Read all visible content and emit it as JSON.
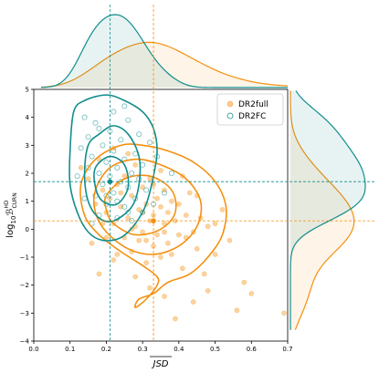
{
  "chart_data": {
    "type": "scatter",
    "xlabel": "JSD",
    "xlabel_overline": true,
    "ylabel_text": "log",
    "ylabel_sub": "10",
    "ylabel_b": "ℬ",
    "ylabel_sup": "HD",
    "ylabel_sub2": "CURN",
    "xlim": [
      0.0,
      0.7
    ],
    "ylim": [
      -4,
      5
    ],
    "xticks": [
      "0.0",
      "0.1",
      "0.2",
      "0.3",
      "0.4",
      "0.5",
      "0.6",
      "0.7"
    ],
    "yticks": [
      "−4",
      "−3",
      "−2",
      "−1",
      "0",
      "1",
      "2",
      "3",
      "4",
      "5"
    ],
    "legend_position": "top-right",
    "colors": {
      "dr2full": "#f5900f",
      "dr2fc": "#128d8d"
    },
    "series": [
      {
        "name": "DR2full",
        "marker": "filled-circle",
        "color": "#f5900f",
        "median": [
          0.33,
          0.3
        ],
        "points": [
          [
            0.13,
            2.2
          ],
          [
            0.15,
            1.8
          ],
          [
            0.17,
            0.9
          ],
          [
            0.18,
            2.5
          ],
          [
            0.19,
            1.4
          ],
          [
            0.2,
            0.6
          ],
          [
            0.21,
            1.1
          ],
          [
            0.22,
            2.9
          ],
          [
            0.22,
            0.2
          ],
          [
            0.23,
            1.6
          ],
          [
            0.24,
            0.8
          ],
          [
            0.25,
            -0.3
          ],
          [
            0.25,
            1.9
          ],
          [
            0.26,
            0.4
          ],
          [
            0.27,
            1.2
          ],
          [
            0.27,
            -0.8
          ],
          [
            0.28,
            0.1
          ],
          [
            0.28,
            2.3
          ],
          [
            0.29,
            0.7
          ],
          [
            0.29,
            -0.4
          ],
          [
            0.3,
            1.5
          ],
          [
            0.3,
            -0.1
          ],
          [
            0.31,
            0.9
          ],
          [
            0.31,
            -1.2
          ],
          [
            0.32,
            0.3
          ],
          [
            0.32,
            1.8
          ],
          [
            0.33,
            -0.6
          ],
          [
            0.33,
            0.5
          ],
          [
            0.34,
            1.1
          ],
          [
            0.34,
            -0.2
          ],
          [
            0.35,
            0.8
          ],
          [
            0.35,
            -1.0
          ],
          [
            0.36,
            0.2
          ],
          [
            0.36,
            1.4
          ],
          [
            0.37,
            -0.5
          ],
          [
            0.37,
            0.6
          ],
          [
            0.38,
            1.0
          ],
          [
            0.38,
            -0.9
          ],
          [
            0.39,
            0.3
          ],
          [
            0.4,
            -0.2
          ],
          [
            0.4,
            0.9
          ],
          [
            0.41,
            -1.4
          ],
          [
            0.42,
            0.5
          ],
          [
            0.43,
            1.3
          ],
          [
            0.44,
            -0.1
          ],
          [
            0.45,
            -0.7
          ],
          [
            0.46,
            0.4
          ],
          [
            0.47,
            -1.6
          ],
          [
            0.48,
            0.1
          ],
          [
            0.5,
            -0.9
          ],
          [
            0.52,
            0.7
          ],
          [
            0.54,
            -0.4
          ],
          [
            0.56,
            -2.9
          ],
          [
            0.58,
            -1.9
          ],
          [
            0.6,
            -2.3
          ],
          [
            0.48,
            -2.2
          ],
          [
            0.36,
            -2.4
          ],
          [
            0.28,
            -1.7
          ],
          [
            0.18,
            -1.6
          ],
          [
            0.23,
            -0.9
          ],
          [
            0.39,
            -3.2
          ],
          [
            0.44,
            -2.6
          ],
          [
            0.26,
            2.7
          ],
          [
            0.35,
            2.1
          ],
          [
            0.41,
            1.9
          ],
          [
            0.45,
            1.2
          ],
          [
            0.5,
            0.2
          ],
          [
            0.24,
            1.3
          ],
          [
            0.3,
            0.6
          ],
          [
            0.33,
            1.6
          ],
          [
            0.2,
            -0.3
          ],
          [
            0.22,
            -1.1
          ],
          [
            0.27,
            0.0
          ],
          [
            0.31,
            -0.4
          ],
          [
            0.36,
            -0.1
          ],
          [
            0.42,
            -0.3
          ],
          [
            0.19,
            0.2
          ],
          [
            0.16,
            -0.5
          ],
          [
            0.69,
            -3.0
          ],
          [
            0.32,
            -2.1
          ]
        ]
      },
      {
        "name": "DR2FC",
        "marker": "open-circle",
        "color": "#128d8d",
        "median": [
          0.21,
          1.7
        ],
        "points": [
          [
            0.14,
            4.0
          ],
          [
            0.15,
            3.3
          ],
          [
            0.16,
            2.6
          ],
          [
            0.17,
            3.8
          ],
          [
            0.17,
            1.2
          ],
          [
            0.18,
            2.0
          ],
          [
            0.18,
            0.5
          ],
          [
            0.19,
            3.0
          ],
          [
            0.19,
            1.6
          ],
          [
            0.2,
            2.4
          ],
          [
            0.2,
            0.9
          ],
          [
            0.21,
            3.5
          ],
          [
            0.21,
            1.9
          ],
          [
            0.22,
            2.8
          ],
          [
            0.22,
            1.3
          ],
          [
            0.23,
            0.4
          ],
          [
            0.23,
            2.2
          ],
          [
            0.24,
            1.7
          ],
          [
            0.24,
            3.2
          ],
          [
            0.25,
            0.8
          ],
          [
            0.25,
            2.5
          ],
          [
            0.26,
            1.5
          ],
          [
            0.26,
            3.9
          ],
          [
            0.27,
            2.0
          ],
          [
            0.27,
            0.3
          ],
          [
            0.28,
            1.1
          ],
          [
            0.28,
            2.7
          ],
          [
            0.29,
            1.8
          ],
          [
            0.3,
            0.6
          ],
          [
            0.3,
            2.3
          ],
          [
            0.31,
            1.4
          ],
          [
            0.32,
            3.1
          ],
          [
            0.33,
            0.9
          ],
          [
            0.13,
            2.9
          ],
          [
            0.12,
            1.9
          ],
          [
            0.14,
            1.1
          ],
          [
            0.16,
            0.2
          ],
          [
            0.22,
            4.2
          ],
          [
            0.25,
            4.4
          ],
          [
            0.18,
            3.6
          ],
          [
            0.2,
            1.2
          ],
          [
            0.23,
            1.0
          ],
          [
            0.26,
            0.6
          ],
          [
            0.15,
            2.2
          ],
          [
            0.29,
            3.4
          ],
          [
            0.34,
            2.6
          ],
          [
            0.36,
            1.3
          ],
          [
            0.38,
            2.0
          ]
        ]
      }
    ],
    "contours": {
      "dr2fc": [
        [
          [
            0.11,
            4.2
          ],
          [
            0.14,
            4.6
          ],
          [
            0.2,
            4.8
          ],
          [
            0.25,
            4.6
          ],
          [
            0.3,
            4.2
          ],
          [
            0.33,
            3.6
          ],
          [
            0.34,
            2.8
          ],
          [
            0.33,
            1.9
          ],
          [
            0.31,
            0.9
          ],
          [
            0.28,
            0.2
          ],
          [
            0.24,
            -0.3
          ],
          [
            0.19,
            -0.4
          ],
          [
            0.15,
            -0.1
          ],
          [
            0.12,
            0.6
          ],
          [
            0.1,
            1.6
          ],
          [
            0.1,
            2.8
          ],
          [
            0.11,
            4.2
          ]
        ],
        [
          [
            0.15,
            3.0
          ],
          [
            0.18,
            3.4
          ],
          [
            0.22,
            3.7
          ],
          [
            0.26,
            3.4
          ],
          [
            0.29,
            2.6
          ],
          [
            0.29,
            1.6
          ],
          [
            0.27,
            0.8
          ],
          [
            0.22,
            0.3
          ],
          [
            0.18,
            0.4
          ],
          [
            0.15,
            1.0
          ],
          [
            0.14,
            2.0
          ],
          [
            0.15,
            3.0
          ]
        ],
        [
          [
            0.17,
            2.2
          ],
          [
            0.21,
            2.6
          ],
          [
            0.25,
            2.3
          ],
          [
            0.26,
            1.5
          ],
          [
            0.23,
            0.9
          ],
          [
            0.19,
            1.0
          ],
          [
            0.17,
            1.5
          ],
          [
            0.17,
            2.2
          ]
        ]
      ],
      "dr2full": [
        [
          [
            0.13,
            1.6
          ],
          [
            0.17,
            2.5
          ],
          [
            0.24,
            3.0
          ],
          [
            0.3,
            3.0
          ],
          [
            0.37,
            2.8
          ],
          [
            0.44,
            2.4
          ],
          [
            0.5,
            1.7
          ],
          [
            0.53,
            0.8
          ],
          [
            0.52,
            -0.2
          ],
          [
            0.48,
            -1.0
          ],
          [
            0.43,
            -1.6
          ],
          [
            0.37,
            -1.9
          ],
          [
            0.33,
            -2.3
          ],
          [
            0.29,
            -2.5
          ],
          [
            0.28,
            -2.8
          ],
          [
            0.31,
            -2.5
          ],
          [
            0.34,
            -2.0
          ],
          [
            0.34,
            -1.7
          ],
          [
            0.3,
            -1.3
          ],
          [
            0.24,
            -0.8
          ],
          [
            0.18,
            -0.2
          ],
          [
            0.14,
            0.5
          ],
          [
            0.13,
            1.6
          ]
        ],
        [
          [
            0.17,
            1.4
          ],
          [
            0.21,
            2.2
          ],
          [
            0.28,
            2.5
          ],
          [
            0.35,
            2.3
          ],
          [
            0.42,
            1.8
          ],
          [
            0.46,
            1.0
          ],
          [
            0.45,
            0.1
          ],
          [
            0.4,
            -0.6
          ],
          [
            0.33,
            -0.9
          ],
          [
            0.26,
            -0.7
          ],
          [
            0.2,
            -0.1
          ],
          [
            0.17,
            0.6
          ],
          [
            0.17,
            1.4
          ]
        ],
        [
          [
            0.2,
            1.2
          ],
          [
            0.25,
            1.8
          ],
          [
            0.32,
            1.9
          ],
          [
            0.38,
            1.4
          ],
          [
            0.39,
            0.6
          ],
          [
            0.35,
            0.0
          ],
          [
            0.28,
            -0.2
          ],
          [
            0.22,
            0.2
          ],
          [
            0.2,
            0.7
          ],
          [
            0.2,
            1.2
          ]
        ]
      ]
    }
  }
}
